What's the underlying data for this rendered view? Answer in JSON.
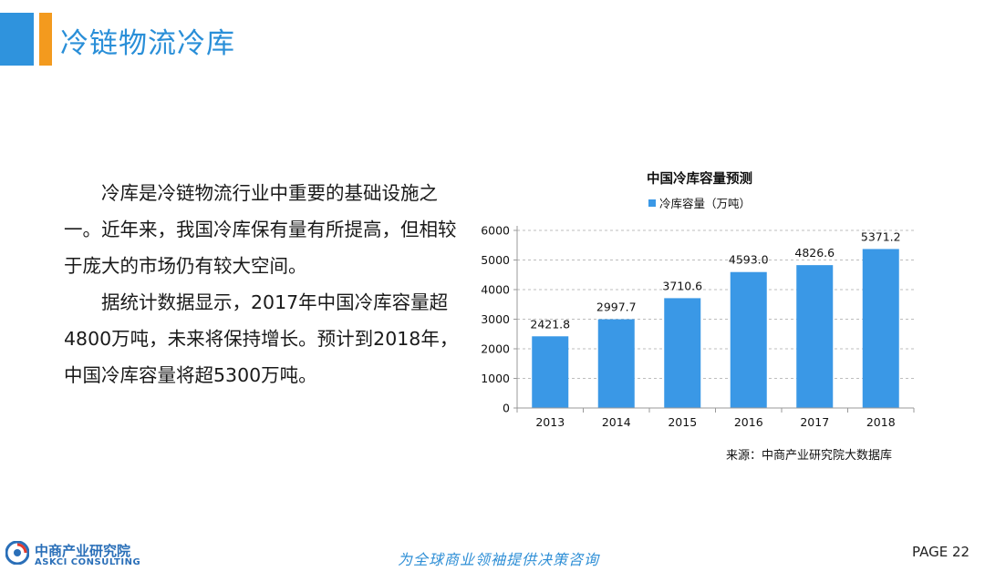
{
  "page": {
    "title": "冷链物流冷库",
    "paragraphs": [
      "冷库是冷链物流行业中重要的基础设施之一。近年来，我国冷库保有量有所提高，但相较于庞大的市场仍有较大空间。",
      "据统计数据显示，2017年中国冷库容量超4800万吨，未来将保持增长。预计到2018年，中国冷库容量将超5300万吨。"
    ],
    "source": "来源：中商产业研究院大数据库"
  },
  "chart_data": {
    "type": "bar",
    "title": "中国冷库容量预测",
    "categories": [
      "2013",
      "2014",
      "2015",
      "2016",
      "2017",
      "2018"
    ],
    "series": [
      {
        "name": "冷库容量（万吨）",
        "values": [
          2421.8,
          2997.7,
          3710.6,
          4593.0,
          4826.6,
          5371.2
        ],
        "labels": [
          "2421.8",
          "2997.7",
          "3710.6",
          "4593.0",
          "4826.6",
          "5371.2"
        ],
        "color": "#3a98e6"
      }
    ],
    "ylim": [
      0,
      6000
    ],
    "yticks": [
      "0",
      "1000",
      "2000",
      "3000",
      "4000",
      "5000",
      "6000"
    ],
    "grid": true,
    "legend": "top"
  },
  "footer": {
    "org_cn": "中商产业研究院",
    "org_en": "ASKCI CONSULTING",
    "slogan": "为全球商业领袖提供决策咨询",
    "page_label": "PAGE  22"
  },
  "colors": {
    "title": "#2a8fd8",
    "bar_blue": "#2f93dd",
    "bar_orange": "#f39a1e",
    "series": "#3a98e6"
  }
}
